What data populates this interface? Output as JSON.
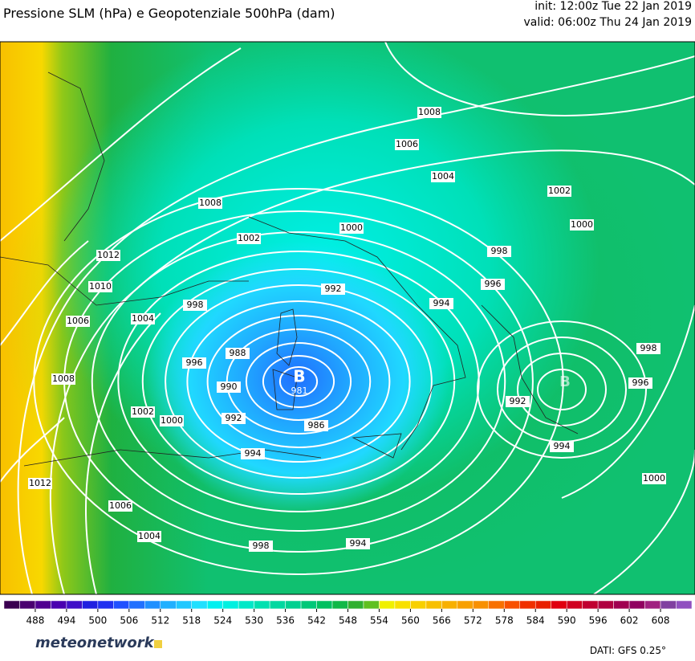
{
  "header": {
    "title": "Pressione SLM (hPa) e Geopotenziale 500hPa (dam)",
    "init": "init: 12:00z Tue 22 Jan 2019",
    "valid": "valid: 06:00z Thu 24 Jan 2019"
  },
  "map": {
    "isobar_labels": [
      "1008",
      "1006",
      "1004",
      "1002",
      "1000",
      "1008",
      "1000",
      "1002",
      "998",
      "1012",
      "996",
      "992",
      "1010",
      "994",
      "998",
      "1004",
      "1006",
      "998",
      "988",
      "996",
      "996",
      "990",
      "1008",
      "992",
      "1002",
      "1000",
      "992",
      "986",
      "994",
      "994",
      "1012",
      "1000",
      "1006",
      "1004",
      "998",
      "994"
    ],
    "lows": [
      {
        "symbol": "B",
        "value": "981"
      },
      {
        "symbol": "B"
      }
    ]
  },
  "colorbar": {
    "lim": [
      482,
      614
    ],
    "ticks": [
      488,
      494,
      500,
      506,
      512,
      518,
      524,
      530,
      536,
      542,
      548,
      554,
      560,
      566,
      572,
      578,
      584,
      590,
      596,
      602,
      608
    ],
    "colors": [
      "#3a0050",
      "#4a0070",
      "#500090",
      "#4a00b0",
      "#4010c8",
      "#2020e0",
      "#2030f0",
      "#2050ff",
      "#2070ff",
      "#2090ff",
      "#20b0ff",
      "#20c8ff",
      "#20e0ff",
      "#00f0f0",
      "#00f0e0",
      "#00e8c8",
      "#00e0b0",
      "#00d8a0",
      "#00d090",
      "#00c878",
      "#00c060",
      "#10b848",
      "#30b030",
      "#60c020",
      "#f0f000",
      "#f8e000",
      "#f8d000",
      "#f8c000",
      "#f8b000",
      "#f8a000",
      "#f89000",
      "#f87000",
      "#f85000",
      "#f03000",
      "#e82000",
      "#e00010",
      "#d00020",
      "#c00030",
      "#b00040",
      "#a00050",
      "#900060",
      "#a02080",
      "#8040a0",
      "#9050c0"
    ]
  },
  "footer": {
    "logo": "meteonetwork",
    "source": "DATI: GFS 0.25°"
  }
}
